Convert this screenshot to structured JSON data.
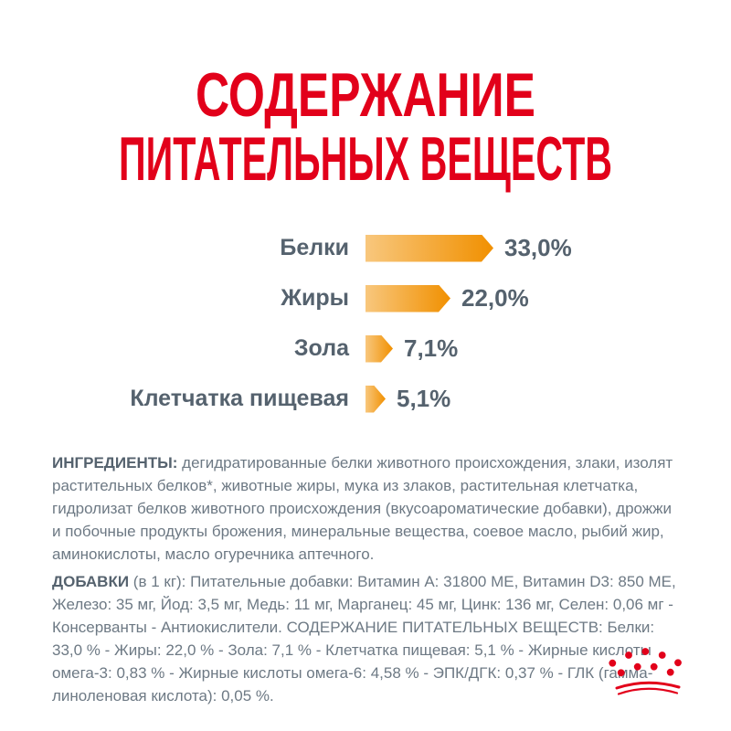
{
  "title": {
    "line1": "СОДЕРЖАНИЕ",
    "line2": "ПИТАТЕЛЬНЫХ ВЕЩЕСТВ"
  },
  "chart_data": {
    "type": "bar",
    "orientation": "horizontal",
    "title": "СОДЕРЖАНИЕ ПИТАТЕЛЬНЫХ ВЕЩЕСТВ",
    "categories": [
      "Белки",
      "Жиры",
      "Зола",
      "Клетчатка пищевая"
    ],
    "values": [
      33.0,
      22.0,
      7.1,
      5.1
    ],
    "unit": "%",
    "xlim": [
      0,
      33
    ],
    "grid": false,
    "legend": false,
    "bar_style": "arrow-gradient",
    "rows": [
      {
        "label": "Белки",
        "value": 33.0,
        "display": "33,0%"
      },
      {
        "label": "Жиры",
        "value": 22.0,
        "display": "22,0%"
      },
      {
        "label": "Зола",
        "value": 7.1,
        "display": "7,1%"
      },
      {
        "label": "Клетчатка пищевая",
        "value": 5.1,
        "display": "5,1%"
      }
    ]
  },
  "ingredients": {
    "lead": "ИНГРЕДИЕНТЫ:",
    "text": " дегидратированные белки животного происхождения, злаки, изолят растительных белков*, животные жиры, мука из злаков, растительная клетчатка, гидролизат белков животного происхождения (вкусоароматические добавки), дрожжи и побочные продукты брожения, минеральные вещества, соевое масло, рыбий жир, аминокислоты, масло огуречника аптечного."
  },
  "additives": {
    "lead": "ДОБАВКИ",
    "text": " (в 1 кг): Питательные добавки: Витамин A: 31800 ME, Витамин D3: 850 ME, Железо: 35 мг, Йод: 3,5 мг, Медь: 11 мг, Марганец: 45 мг, Цинк: 136 мг, Селен: 0,06 мг - Консерванты - Антиокислители. СОДЕРЖАНИЕ ПИТАТЕЛЬНЫХ ВЕЩЕСТВ: Белки: 33,0 % - Жиры: 22,0 % - Зола: 7,1 % - Клетчатка пищевая: 5,1 % - Жирные кислоты омега-3: 0,83 % - Жирные кислоты омега-6: 4,58 % - ЭПК/ДГК: 0,37 % - ГЛК (гамма-линоленовая кислота): 0,05 %."
  },
  "colors": {
    "brand_red": "#E2001A",
    "bar_gradient_start": "#F8C77D",
    "bar_gradient_end": "#F19000",
    "chart_text": "#55626E",
    "body_text": "#6D7984"
  },
  "logo": {
    "name": "royal-canin-crown"
  }
}
